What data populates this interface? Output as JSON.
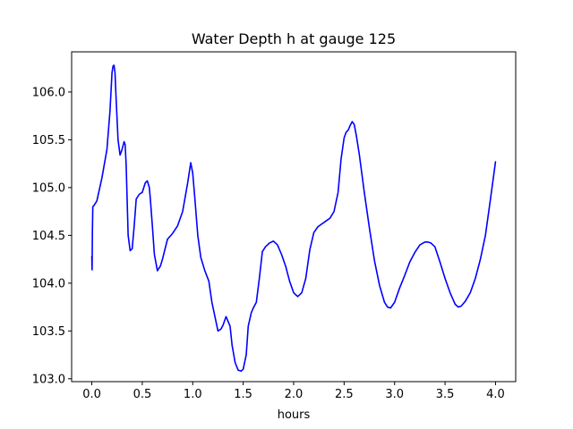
{
  "chart_data": {
    "type": "line",
    "title": "Water Depth h at gauge 125",
    "xlabel": "hours",
    "ylabel": "",
    "xlim": [
      -0.2,
      4.2
    ],
    "ylim": [
      102.97,
      106.42
    ],
    "xticks": [
      0.0,
      0.5,
      1.0,
      1.5,
      2.0,
      2.5,
      3.0,
      3.5,
      4.0
    ],
    "xtick_labels": [
      "0.0",
      "0.5",
      "1.0",
      "1.5",
      "2.0",
      "2.5",
      "3.0",
      "3.5",
      "4.0"
    ],
    "yticks": [
      103.0,
      103.5,
      104.0,
      104.5,
      105.0,
      105.5,
      106.0
    ],
    "ytick_labels": [
      "103.0",
      "103.5",
      "104.0",
      "104.5",
      "105.0",
      "105.5",
      "106.0"
    ],
    "grid": false,
    "legend": "none",
    "series": [
      {
        "color": "#0000ff",
        "x": [
          0.0,
          0.003,
          0.006,
          0.01,
          0.02,
          0.05,
          0.1,
          0.15,
          0.18,
          0.2,
          0.21,
          0.22,
          0.23,
          0.24,
          0.26,
          0.28,
          0.3,
          0.32,
          0.33,
          0.34,
          0.36,
          0.38,
          0.4,
          0.42,
          0.44,
          0.47,
          0.5,
          0.53,
          0.55,
          0.57,
          0.58,
          0.6,
          0.62,
          0.65,
          0.68,
          0.7,
          0.75,
          0.8,
          0.85,
          0.9,
          0.95,
          0.98,
          1.0,
          1.02,
          1.05,
          1.08,
          1.12,
          1.16,
          1.19,
          1.22,
          1.25,
          1.28,
          1.3,
          1.33,
          1.35,
          1.37,
          1.39,
          1.42,
          1.45,
          1.48,
          1.5,
          1.53,
          1.55,
          1.58,
          1.6,
          1.63,
          1.66,
          1.69,
          1.72,
          1.76,
          1.8,
          1.84,
          1.88,
          1.92,
          1.96,
          2.0,
          2.04,
          2.08,
          2.12,
          2.16,
          2.2,
          2.24,
          2.28,
          2.32,
          2.36,
          2.4,
          2.44,
          2.47,
          2.5,
          2.52,
          2.54,
          2.56,
          2.58,
          2.6,
          2.62,
          2.65,
          2.7,
          2.75,
          2.8,
          2.85,
          2.9,
          2.93,
          2.96,
          3.0,
          3.05,
          3.1,
          3.15,
          3.2,
          3.25,
          3.3,
          3.33,
          3.36,
          3.4,
          3.45,
          3.5,
          3.55,
          3.6,
          3.63,
          3.66,
          3.7,
          3.75,
          3.8,
          3.85,
          3.9,
          3.95,
          4.0
        ],
        "y": [
          104.28,
          104.14,
          104.55,
          104.8,
          104.81,
          104.86,
          105.1,
          105.4,
          105.8,
          106.2,
          106.27,
          106.28,
          106.2,
          105.95,
          105.5,
          105.34,
          105.4,
          105.48,
          105.45,
          105.25,
          104.5,
          104.34,
          104.36,
          104.6,
          104.88,
          104.93,
          104.95,
          105.05,
          105.07,
          105.0,
          104.88,
          104.6,
          104.3,
          104.13,
          104.18,
          104.25,
          104.46,
          104.52,
          104.6,
          104.75,
          105.05,
          105.26,
          105.15,
          104.9,
          104.5,
          104.27,
          104.13,
          104.02,
          103.8,
          103.65,
          103.5,
          103.52,
          103.56,
          103.65,
          103.6,
          103.55,
          103.35,
          103.17,
          103.09,
          103.08,
          103.1,
          103.25,
          103.55,
          103.69,
          103.74,
          103.8,
          104.05,
          104.33,
          104.38,
          104.42,
          104.44,
          104.4,
          104.3,
          104.18,
          104.02,
          103.9,
          103.86,
          103.9,
          104.05,
          104.35,
          104.53,
          104.59,
          104.62,
          104.65,
          104.68,
          104.75,
          104.95,
          105.3,
          105.52,
          105.58,
          105.6,
          105.65,
          105.69,
          105.66,
          105.55,
          105.35,
          104.95,
          104.58,
          104.24,
          103.98,
          103.8,
          103.75,
          103.74,
          103.8,
          103.95,
          104.08,
          104.22,
          104.32,
          104.4,
          104.43,
          104.43,
          104.42,
          104.38,
          104.22,
          104.05,
          103.9,
          103.78,
          103.75,
          103.76,
          103.81,
          103.9,
          104.05,
          104.25,
          104.5,
          104.88,
          105.27
        ]
      }
    ]
  }
}
